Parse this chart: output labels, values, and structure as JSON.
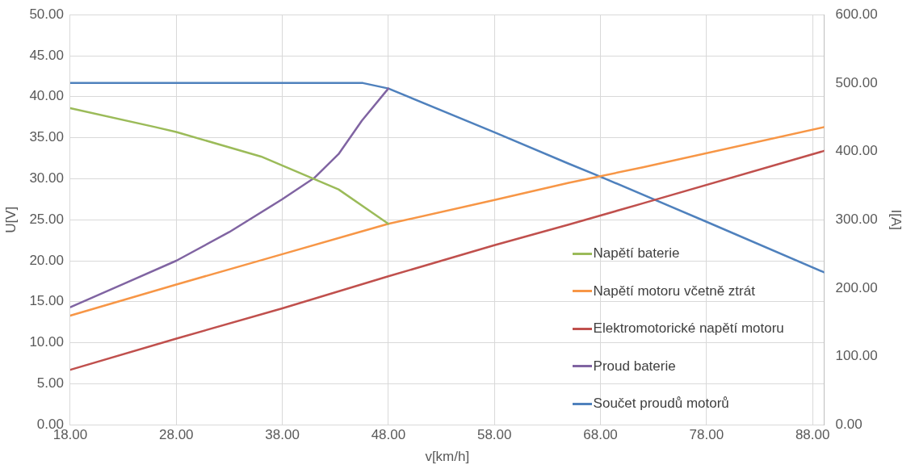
{
  "chart_data": {
    "type": "line",
    "xlabel": "v[km/h]",
    "ylabel": "U[V]",
    "y2label": "I[A]",
    "xlim": [
      18,
      89.1
    ],
    "xticks": [
      {
        "value": 18,
        "label": "18.00"
      },
      {
        "value": 28,
        "label": "28.00"
      },
      {
        "value": 38,
        "label": "38.00"
      },
      {
        "value": 48,
        "label": "48.00"
      },
      {
        "value": 58,
        "label": "58.00"
      },
      {
        "value": 68,
        "label": "68.00"
      },
      {
        "value": 78,
        "label": "78.00"
      },
      {
        "value": 88,
        "label": "88.00"
      }
    ],
    "ylim": [
      0,
      50
    ],
    "yticks": [
      {
        "value": 0,
        "label": "0.00"
      },
      {
        "value": 5,
        "label": "5.00"
      },
      {
        "value": 10,
        "label": "10.00"
      },
      {
        "value": 15,
        "label": "15.00"
      },
      {
        "value": 20,
        "label": "20.00"
      },
      {
        "value": 25,
        "label": "25.00"
      },
      {
        "value": 30,
        "label": "30.00"
      },
      {
        "value": 35,
        "label": "35.00"
      },
      {
        "value": 40,
        "label": "40.00"
      },
      {
        "value": 45,
        "label": "45.00"
      },
      {
        "value": 50,
        "label": "50.00"
      }
    ],
    "y2lim": [
      0,
      600
    ],
    "y2ticks": [
      {
        "value": 0,
        "label": "0.00"
      },
      {
        "value": 100,
        "label": "100.00"
      },
      {
        "value": 200,
        "label": "200.00"
      },
      {
        "value": 300,
        "label": "300.00"
      },
      {
        "value": 400,
        "label": "400.00"
      },
      {
        "value": 500,
        "label": "500.00"
      },
      {
        "value": 600,
        "label": "600.00"
      }
    ],
    "grid": true,
    "legend": "bottom right",
    "marker": "none",
    "line_style": "solid",
    "series": [
      {
        "name": "Napětí baterie",
        "color": "#9bbb59",
        "x": [
          18,
          26,
          28,
          36,
          43.3,
          48
        ],
        "values": [
          38.6,
          36.3,
          35.7,
          32.7,
          28.7,
          24.5
        ]
      },
      {
        "name": "Napětí motoru včetně ztrát",
        "color": "#f79646",
        "x": [
          18,
          28,
          38,
          45,
          48,
          58,
          65,
          72,
          89.1
        ],
        "values": [
          13.3,
          17.1,
          20.8,
          23.4,
          24.5,
          27.4,
          29.5,
          31.4,
          36.3
        ]
      },
      {
        "name": "Elektromotorické napětí motoru",
        "color": "#c0504d",
        "x": [
          18,
          28,
          38,
          48,
          58,
          65,
          72,
          89.1
        ],
        "values": [
          6.7,
          10.5,
          14.2,
          18.1,
          21.9,
          24.4,
          27.0,
          33.4
        ]
      },
      {
        "name": "Proud baterie",
        "color": "#8064a2",
        "axis": "y2",
        "x": [
          18,
          23,
          28,
          33,
          38,
          41,
          43.3,
          45.5,
          48
        ],
        "values": [
          172,
          206,
          240,
          282,
          330,
          361,
          396,
          445,
          492
        ]
      },
      {
        "name": "Součet proudů motorů",
        "color": "#4f81bd",
        "axis": "y2",
        "x": [
          18,
          45.6,
          48,
          58,
          65,
          68,
          78,
          89.1
        ],
        "values": [
          500,
          500,
          492,
          428,
          382,
          363,
          297,
          223
        ]
      }
    ]
  }
}
